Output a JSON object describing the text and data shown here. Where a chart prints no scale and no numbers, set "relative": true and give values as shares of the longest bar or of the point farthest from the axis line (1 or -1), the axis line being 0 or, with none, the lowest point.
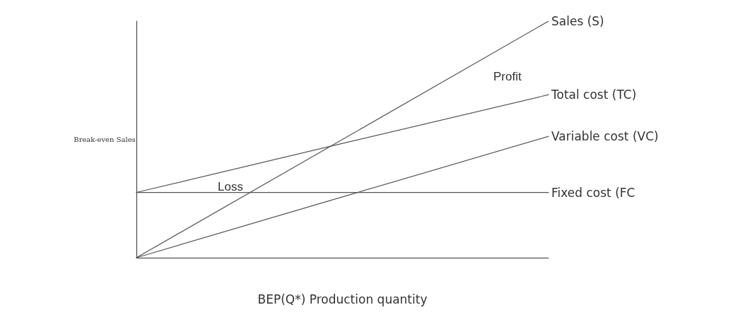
{
  "chart_data": {
    "type": "line",
    "relative": true,
    "xlabel": "BEP(Q*) Production quantity",
    "ylabel": "Break-even Sales",
    "categories": [
      null,
      null,
      null
    ],
    "legend": false,
    "grid": false,
    "marker": "none",
    "line_style": "solid",
    "series": [
      {
        "name": "Sales (S)",
        "color": "#555555",
        "values": [
          0,
          0.5,
          1
        ]
      },
      {
        "name": "Total cost (TC)",
        "color": "#555555",
        "values": [
          0.276,
          0.483,
          0.689
        ]
      },
      {
        "name": "Variable cost (VC)",
        "color": "#555555",
        "values": [
          0,
          0.257,
          0.513
        ]
      },
      {
        "name": "Fixed cost (FC",
        "color": "#555555",
        "values": [
          0.276,
          0.276,
          0.276
        ]
      }
    ],
    "annotations": [
      "Loss",
      "Profit"
    ]
  }
}
